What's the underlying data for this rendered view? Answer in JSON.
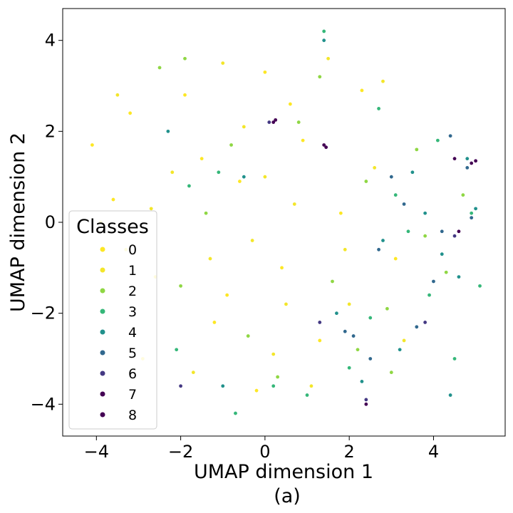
{
  "chart_data": {
    "type": "scatter",
    "title": "",
    "caption": "(a)",
    "xlabel": "UMAP dimension 1",
    "ylabel": "UMAP dimension 2",
    "xlim": [
      -4.8,
      5.7
    ],
    "ylim": [
      -4.7,
      4.7
    ],
    "xticks": [
      -4,
      -2,
      0,
      2,
      4
    ],
    "yticks": [
      -4,
      -2,
      0,
      2,
      4
    ],
    "xtick_labels": [
      "−4",
      "−2",
      "0",
      "2",
      "4"
    ],
    "ytick_labels": [
      "−4",
      "−2",
      "0",
      "2",
      "4"
    ],
    "grid": false,
    "legend": {
      "title": "Classes",
      "placement": "lower-left",
      "entries": [
        "0",
        "1",
        "2",
        "3",
        "4",
        "5",
        "6",
        "7",
        "8"
      ]
    },
    "colors": [
      "#fde725",
      "#f3e62a",
      "#8fd744",
      "#35b779",
      "#21918c",
      "#31688e",
      "#443983",
      "#440154",
      "#440154"
    ],
    "series": [
      {
        "name": "0",
        "points": [
          [
            -4.1,
            1.7
          ],
          [
            -3.6,
            0.5
          ],
          [
            -3.2,
            2.4
          ],
          [
            -2.6,
            -1.2
          ],
          [
            -1.9,
            2.8
          ],
          [
            -1.2,
            -2.2
          ],
          [
            -0.6,
            0.9
          ],
          [
            0.0,
            3.3
          ],
          [
            0.4,
            -1.0
          ],
          [
            0.9,
            1.8
          ],
          [
            1.3,
            -2.6
          ],
          [
            1.8,
            0.2
          ],
          [
            2.3,
            2.9
          ],
          [
            -0.2,
            -3.7
          ],
          [
            -2.9,
            -3.0
          ],
          [
            3.1,
            -0.8
          ],
          [
            -3.9,
            0.0
          ],
          [
            -1.5,
            1.4
          ],
          [
            0.6,
            2.6
          ],
          [
            -0.9,
            -1.6
          ]
        ]
      },
      {
        "name": "1",
        "points": [
          [
            -3.3,
            -0.6
          ],
          [
            -2.2,
            1.1
          ],
          [
            -1.0,
            3.5
          ],
          [
            -0.3,
            -0.4
          ],
          [
            0.7,
            0.4
          ],
          [
            1.5,
            3.6
          ],
          [
            2.0,
            -1.8
          ],
          [
            2.6,
            1.2
          ],
          [
            -1.7,
            -3.3
          ],
          [
            0.2,
            -2.9
          ],
          [
            1.1,
            -3.6
          ],
          [
            -2.7,
            0.3
          ],
          [
            3.3,
            -2.6
          ],
          [
            -0.5,
            2.1
          ],
          [
            1.9,
            -0.6
          ],
          [
            -3.5,
            2.8
          ],
          [
            0.0,
            1.0
          ],
          [
            -1.3,
            -0.8
          ],
          [
            2.8,
            3.1
          ],
          [
            0.5,
            -1.8
          ]
        ]
      },
      {
        "name": "2",
        "points": [
          [
            -2.5,
            3.4
          ],
          [
            -1.4,
            0.2
          ],
          [
            -0.4,
            -2.5
          ],
          [
            0.8,
            2.2
          ],
          [
            1.6,
            -1.3
          ],
          [
            2.4,
            0.9
          ],
          [
            3.0,
            -3.3
          ],
          [
            3.6,
            1.6
          ],
          [
            4.3,
            -1.1
          ],
          [
            -0.8,
            1.7
          ],
          [
            1.3,
            3.2
          ],
          [
            2.9,
            -1.9
          ],
          [
            -2.0,
            -1.4
          ],
          [
            3.8,
            -0.3
          ],
          [
            0.3,
            -3.4
          ],
          [
            4.7,
            0.6
          ],
          [
            -1.9,
            3.6
          ],
          [
            2.2,
            -2.8
          ]
        ]
      },
      {
        "name": "3",
        "points": [
          [
            -2.1,
            -2.8
          ],
          [
            -1.1,
            1.1
          ],
          [
            0.2,
            -3.6
          ],
          [
            1.4,
            4.2
          ],
          [
            2.5,
            -2.1
          ],
          [
            3.1,
            0.6
          ],
          [
            3.9,
            -1.6
          ],
          [
            4.5,
            -3.0
          ],
          [
            4.9,
            0.2
          ],
          [
            -1.8,
            0.8
          ],
          [
            2.7,
            2.5
          ],
          [
            3.4,
            -0.2
          ],
          [
            1.0,
            -3.8
          ],
          [
            -0.7,
            -4.2
          ],
          [
            4.1,
            1.8
          ],
          [
            2.0,
            -3.2
          ],
          [
            5.1,
            -1.4
          ]
        ]
      },
      {
        "name": "4",
        "points": [
          [
            -2.3,
            2.0
          ],
          [
            -0.5,
            1.0
          ],
          [
            1.7,
            -2.0
          ],
          [
            2.8,
            -0.4
          ],
          [
            3.5,
            1.1
          ],
          [
            4.2,
            -0.7
          ],
          [
            4.8,
            1.4
          ],
          [
            5.0,
            0.3
          ],
          [
            2.3,
            -3.5
          ],
          [
            4.4,
            -3.8
          ],
          [
            -1.0,
            -3.6
          ],
          [
            3.2,
            -2.8
          ],
          [
            4.6,
            -1.2
          ],
          [
            1.4,
            4.0
          ],
          [
            3.8,
            0.2
          ]
        ]
      },
      {
        "name": "5",
        "points": [
          [
            2.1,
            -2.5
          ],
          [
            2.7,
            -0.6
          ],
          [
            3.3,
            0.4
          ],
          [
            4.0,
            -1.3
          ],
          [
            4.4,
            1.9
          ],
          [
            4.8,
            1.2
          ],
          [
            4.9,
            0.1
          ],
          [
            3.6,
            -2.3
          ],
          [
            2.5,
            -3.0
          ],
          [
            4.2,
            -0.2
          ],
          [
            1.9,
            -2.4
          ],
          [
            3.0,
            1.0
          ]
        ]
      },
      {
        "name": "6",
        "points": [
          [
            0.1,
            2.2
          ],
          [
            2.4,
            -3.9
          ],
          [
            4.5,
            -0.3
          ],
          [
            3.8,
            -2.2
          ],
          [
            1.3,
            -2.2
          ],
          [
            -2.0,
            -3.6
          ]
        ]
      },
      {
        "name": "7",
        "points": [
          [
            0.2,
            2.2
          ],
          [
            1.4,
            1.7
          ],
          [
            4.9,
            1.3
          ],
          [
            2.4,
            -4.0
          ],
          [
            4.5,
            1.4
          ]
        ]
      },
      {
        "name": "8",
        "points": [
          [
            0.25,
            2.25
          ],
          [
            5.0,
            1.35
          ],
          [
            1.45,
            1.65
          ],
          [
            4.6,
            -0.2
          ]
        ]
      }
    ]
  }
}
